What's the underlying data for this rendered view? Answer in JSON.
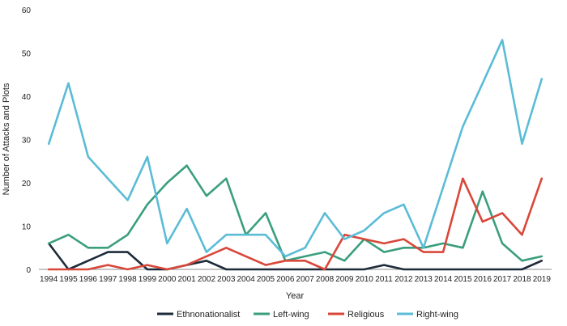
{
  "chart_data": {
    "type": "line",
    "title": "",
    "xlabel": "Year",
    "ylabel": "Number of Attacks and Plots",
    "ylim": [
      0,
      60
    ],
    "yticks": [
      0,
      10,
      20,
      30,
      40,
      50,
      60
    ],
    "grid": false,
    "legend_position": "bottom",
    "categories": [
      "1994",
      "1995",
      "1996",
      "1997",
      "1998",
      "1999",
      "2000",
      "2001",
      "2002",
      "2003",
      "2004",
      "2005",
      "2006",
      "2007",
      "2008",
      "2009",
      "2010",
      "2011",
      "2012",
      "2013",
      "2014",
      "2015",
      "2016",
      "2017",
      "2018",
      "2019"
    ],
    "series": [
      {
        "name": "Ethnonationalist",
        "color": "#1c2b3a",
        "values": [
          6,
          0,
          2,
          4,
          4,
          0,
          0,
          1,
          2,
          0,
          0,
          0,
          0,
          0,
          0,
          0,
          0,
          1,
          0,
          0,
          0,
          0,
          0,
          0,
          0,
          2
        ]
      },
      {
        "name": "Left-wing",
        "color": "#3a9e7e",
        "values": [
          6,
          8,
          5,
          5,
          8,
          15,
          20,
          24,
          17,
          21,
          8,
          13,
          2,
          3,
          4,
          2,
          7,
          4,
          5,
          5,
          6,
          5,
          18,
          6,
          2,
          3
        ]
      },
      {
        "name": "Religious",
        "color": "#d9473a",
        "values": [
          0,
          0,
          0,
          1,
          0,
          1,
          0,
          1,
          3,
          5,
          3,
          1,
          2,
          2,
          0,
          8,
          7,
          6,
          7,
          4,
          4,
          21,
          11,
          13,
          8,
          21
        ]
      },
      {
        "name": "Right-wing",
        "color": "#5bbcd6",
        "values": [
          29,
          43,
          26,
          21,
          16,
          26,
          6,
          14,
          4,
          8,
          8,
          8,
          3,
          5,
          13,
          7,
          9,
          13,
          15,
          5,
          19,
          33,
          43,
          53,
          29,
          44
        ]
      }
    ]
  }
}
